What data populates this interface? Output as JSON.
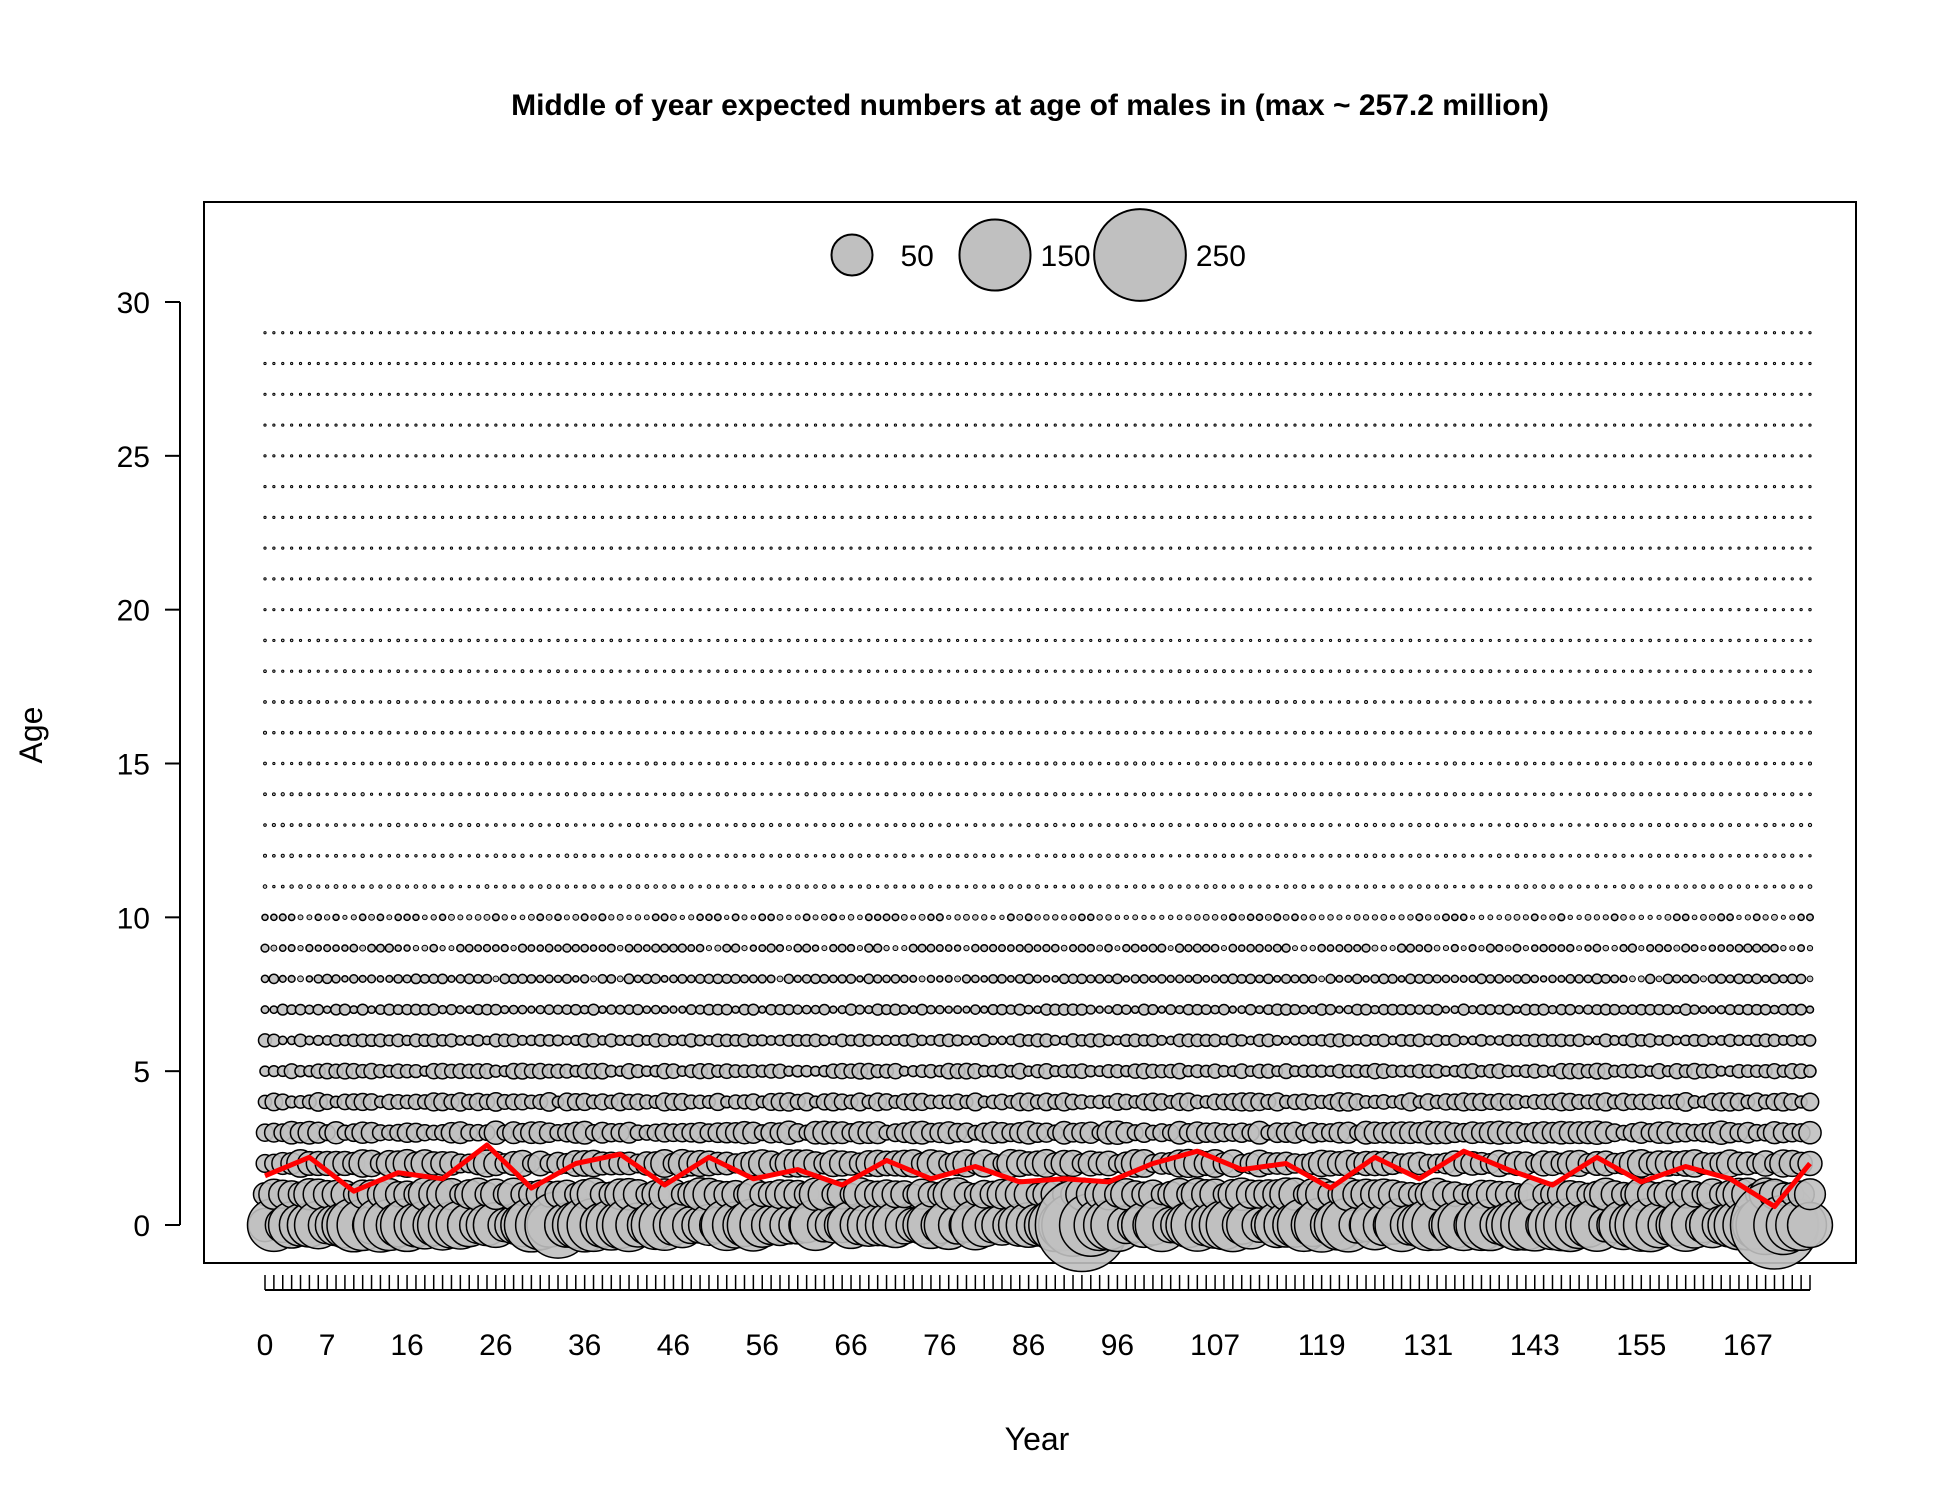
{
  "chart_data": {
    "type": "scatter",
    "subtype": "bubble",
    "title": "Middle of year expected numbers at age of males in (max ~ 257.2 million)",
    "xlabel": "Year",
    "ylabel": "Age",
    "xlim": [
      0,
      174
    ],
    "ylim": [
      -1.3,
      32.5
    ],
    "x_ticks": [
      0,
      7,
      16,
      26,
      36,
      46,
      56,
      66,
      76,
      86,
      96,
      107,
      119,
      131,
      143,
      155,
      167
    ],
    "x_minor_ticks": {
      "from": 0,
      "to": 174,
      "step": 1
    },
    "y_ticks": [
      0,
      5,
      10,
      15,
      20,
      25,
      30
    ],
    "bubble_fill": "#c0c0c0",
    "bubble_stroke": "#000000",
    "max_value_million": 257.2,
    "legend": {
      "position": "top-center",
      "entries": [
        {
          "label": "50",
          "value": 50
        },
        {
          "label": "150",
          "value": 150
        },
        {
          "label": "250",
          "value": 250
        }
      ]
    },
    "ages": [
      0,
      1,
      2,
      3,
      4,
      5,
      6,
      7,
      8,
      9,
      10,
      11,
      12,
      13,
      14,
      15,
      16,
      17,
      18,
      19,
      20,
      21,
      22,
      23,
      24,
      25,
      26,
      27,
      28,
      29
    ],
    "years_first": 0,
    "years_last": 174,
    "numbers_at_age_pattern": {
      "age0_typical_million": 60,
      "age0_peaks_million": [
        {
          "year": 33,
          "value": 130
        },
        {
          "year": 92,
          "value": 257.2
        },
        {
          "year": 170,
          "value": 230
        }
      ],
      "age1_typical_million": 22,
      "age2_typical_million": 16,
      "age3_typical_million": 11,
      "age4_typical_million": 7,
      "age5_typical_million": 5,
      "age6_typical_million": 3.5,
      "age7_typical_million": 2.5,
      "age8_typical_million": 1.8,
      "age9_typical_million": 1.3,
      "age10_typical_million": 0.9,
      "ages_11_to_29_typical_million": 0.3
    },
    "mean_age_line": {
      "color": "#ff0000",
      "name": "",
      "x": [
        0,
        5,
        10,
        15,
        20,
        25,
        30,
        35,
        40,
        45,
        50,
        55,
        60,
        65,
        70,
        75,
        80,
        85,
        90,
        95,
        100,
        105,
        110,
        115,
        120,
        125,
        130,
        135,
        140,
        145,
        150,
        155,
        160,
        165,
        170,
        174
      ],
      "y": [
        1.6,
        2.2,
        1.1,
        1.7,
        1.5,
        2.6,
        1.2,
        2.0,
        2.3,
        1.3,
        2.2,
        1.5,
        1.8,
        1.3,
        2.1,
        1.5,
        1.9,
        1.4,
        1.5,
        1.4,
        2.0,
        2.4,
        1.8,
        2.0,
        1.2,
        2.2,
        1.5,
        2.4,
        1.8,
        1.3,
        2.2,
        1.4,
        1.9,
        1.5,
        0.6,
        2.0
      ]
    }
  }
}
